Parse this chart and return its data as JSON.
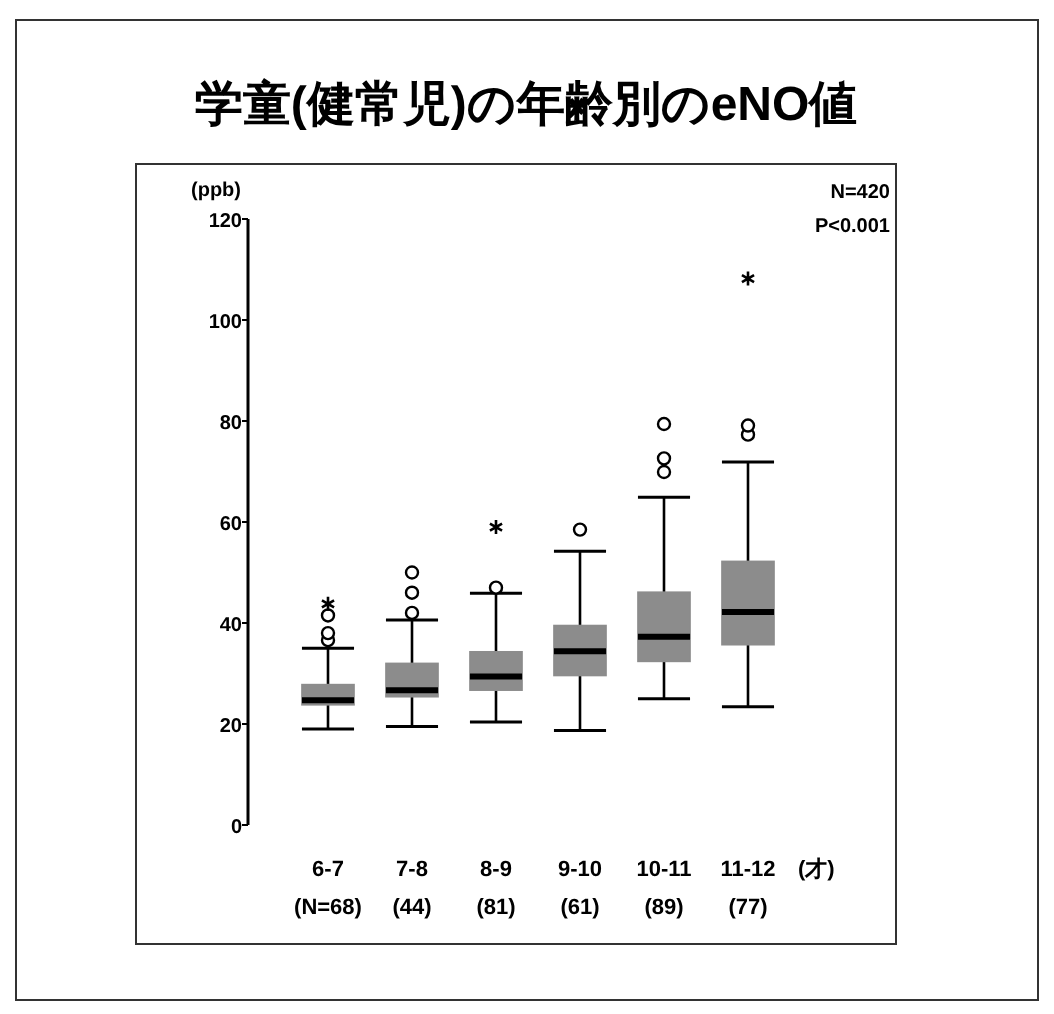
{
  "chart_data": {
    "type": "box",
    "title": "学童(健常児)の年齢別のeNO値",
    "ylabel": "(ppb)",
    "xlabel": "(才)",
    "annotations": [
      "N=420",
      "P<0.001"
    ],
    "categories": [
      "6-7\n(N=68)",
      "7-8\n(44)",
      "8-9\n(81)",
      "9-10\n(61)",
      "10-11\n(89)",
      "11-12\n(77)"
    ],
    "color": "#8c8c8c",
    "boxes": [
      {
        "low": 19,
        "q1": 23.8,
        "median": 24.7,
        "q3": 27.8,
        "high": 35,
        "outliers": [
          36.6,
          38,
          41.5
        ]
      },
      {
        "low": 19.5,
        "q1": 25.4,
        "median": 26.7,
        "q3": 32,
        "high": 40.6,
        "outliers": [
          42,
          46,
          50
        ]
      },
      {
        "low": 20.4,
        "q1": 26.7,
        "median": 29.4,
        "q3": 34.3,
        "high": 45.9,
        "outliers": [
          47
        ]
      },
      {
        "low": 18.7,
        "q1": 29.6,
        "median": 34.4,
        "q3": 39.5,
        "high": 54.2,
        "outliers": [
          58.5
        ]
      },
      {
        "low": 25,
        "q1": 32.4,
        "median": 37.3,
        "q3": 46.1,
        "high": 64.9,
        "outliers": [
          69.9,
          72.6,
          79.4
        ]
      },
      {
        "low": 23.4,
        "q1": 35.7,
        "median": 42.2,
        "q3": 52.2,
        "high": 71.9,
        "outliers": [
          77.3,
          79.1
        ]
      }
    ],
    "series": [
      {
        "type": "scatter",
        "marker": "cross",
        "color": "#000000",
        "x": [
          "6-7\n(N=68)",
          "8-9\n(81)",
          "11-12\n(77)"
        ],
        "values": [
          43.8,
          59,
          108.2
        ]
      }
    ],
    "ylim": [
      0,
      120
    ],
    "yticks": [
      0,
      20,
      40,
      60,
      80,
      100,
      120
    ]
  }
}
